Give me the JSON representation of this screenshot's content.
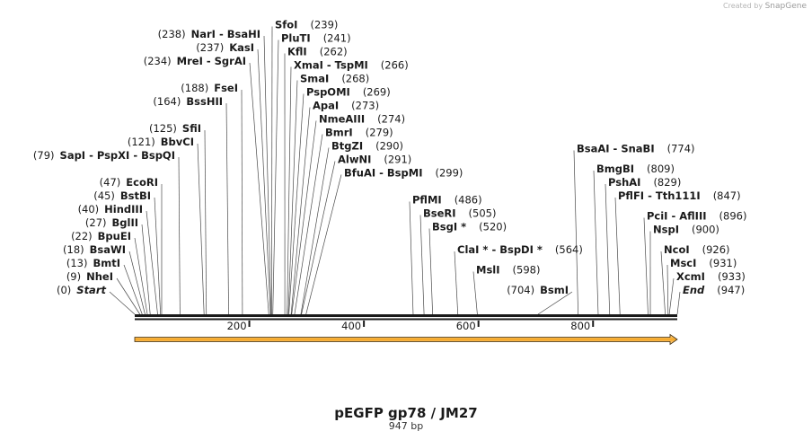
{
  "credit": {
    "prefix": "Created by",
    "brand": "SnapGene"
  },
  "plasmid": {
    "name": "pEGFP gp78 / JM27",
    "length_label": "947 bp",
    "length": 947
  },
  "ticks": [
    {
      "value": 200,
      "label": "200"
    },
    {
      "value": 400,
      "label": "400"
    },
    {
      "value": 600,
      "label": "600"
    },
    {
      "value": 800,
      "label": "800"
    }
  ],
  "feature": {
    "name": "arrow-feature",
    "start": 0,
    "end": 947,
    "color": "#f5a623"
  },
  "sites": [
    {
      "names": [
        "Start"
      ],
      "pos": 0,
      "pos_label": "(0)",
      "italic": true,
      "side": "left",
      "row": 0
    },
    {
      "names": [
        "NheI"
      ],
      "pos": 9,
      "pos_label": "(9)",
      "side": "left",
      "row": 1
    },
    {
      "names": [
        "BmtI"
      ],
      "pos": 13,
      "pos_label": "(13)",
      "side": "left",
      "row": 2
    },
    {
      "names": [
        "BsaWI"
      ],
      "pos": 18,
      "pos_label": "(18)",
      "side": "left",
      "row": 3
    },
    {
      "names": [
        "BpuEI"
      ],
      "pos": 22,
      "pos_label": "(22)",
      "side": "left",
      "row": 4
    },
    {
      "names": [
        "BglII"
      ],
      "pos": 27,
      "pos_label": "(27)",
      "side": "left",
      "row": 5
    },
    {
      "names": [
        "HindIII"
      ],
      "pos": 40,
      "pos_label": "(40)",
      "side": "left",
      "row": 6
    },
    {
      "names": [
        "BstBI"
      ],
      "pos": 45,
      "pos_label": "(45)",
      "side": "left",
      "row": 7
    },
    {
      "names": [
        "EcoRI"
      ],
      "pos": 47,
      "pos_label": "(47)",
      "side": "left",
      "row": 8
    },
    {
      "names": [
        "SapI",
        "PspXI",
        "BspQI"
      ],
      "pos": 79,
      "pos_label": "(79)",
      "side": "left",
      "row": 10
    },
    {
      "names": [
        "BbvCI"
      ],
      "pos": 121,
      "pos_label": "(121)",
      "side": "left",
      "row": 11
    },
    {
      "names": [
        "SfiI"
      ],
      "pos": 125,
      "pos_label": "(125)",
      "side": "left",
      "row": 12
    },
    {
      "names": [
        "BssHII"
      ],
      "pos": 164,
      "pos_label": "(164)",
      "side": "left",
      "row": 14
    },
    {
      "names": [
        "FseI"
      ],
      "pos": 188,
      "pos_label": "(188)",
      "side": "left",
      "row": 15
    },
    {
      "names": [
        "MreI",
        "SgrAI"
      ],
      "pos": 234,
      "pos_label": "(234)",
      "side": "left",
      "row": 17
    },
    {
      "names": [
        "KasI"
      ],
      "pos": 237,
      "pos_label": "(237)",
      "side": "left",
      "row": 18
    },
    {
      "names": [
        "NarI",
        "BsaHI"
      ],
      "pos": 238,
      "pos_label": "(238)",
      "side": "left",
      "row": 19
    },
    {
      "names": [
        "SfoI"
      ],
      "pos": 239,
      "pos_label": "(239)",
      "side": "right",
      "row": 19.7
    },
    {
      "names": [
        "PluTI"
      ],
      "pos": 241,
      "pos_label": "(241)",
      "side": "right",
      "row": 18.7
    },
    {
      "names": [
        "KflI"
      ],
      "pos": 262,
      "pos_label": "(262)",
      "side": "right",
      "row": 17.7
    },
    {
      "names": [
        "XmaI",
        "TspMI"
      ],
      "pos": 266,
      "pos_label": "(266)",
      "side": "right",
      "row": 16.7
    },
    {
      "names": [
        "SmaI"
      ],
      "pos": 268,
      "pos_label": "(268)",
      "side": "right",
      "row": 15.7
    },
    {
      "names": [
        "PspOMI"
      ],
      "pos": 269,
      "pos_label": "(269)",
      "side": "right",
      "row": 14.7
    },
    {
      "names": [
        "ApaI"
      ],
      "pos": 273,
      "pos_label": "(273)",
      "side": "right",
      "row": 13.7
    },
    {
      "names": [
        "NmeAIII"
      ],
      "pos": 274,
      "pos_label": "(274)",
      "side": "right",
      "row": 12.7
    },
    {
      "names": [
        "BmrI"
      ],
      "pos": 279,
      "pos_label": "(279)",
      "side": "right",
      "row": 11.7
    },
    {
      "names": [
        "BtgZI"
      ],
      "pos": 290,
      "pos_label": "(290)",
      "side": "right",
      "row": 10.7
    },
    {
      "names": [
        "AlwNI"
      ],
      "pos": 291,
      "pos_label": "(291)",
      "side": "right",
      "row": 9.7
    },
    {
      "names": [
        "BfuAI",
        "BspMI"
      ],
      "pos": 299,
      "pos_label": "(299)",
      "side": "right",
      "row": 8.7
    },
    {
      "names": [
        "PflMI"
      ],
      "pos": 486,
      "pos_label": "(486)",
      "side": "right",
      "row": 6.7
    },
    {
      "names": [
        "BseRI"
      ],
      "pos": 505,
      "pos_label": "(505)",
      "side": "right",
      "row": 5.7
    },
    {
      "names": [
        "BsgI *"
      ],
      "pos": 520,
      "pos_label": "(520)",
      "side": "right",
      "row": 4.7
    },
    {
      "names": [
        "ClaI *",
        "BspDI *"
      ],
      "pos": 564,
      "pos_label": "(564)",
      "side": "right",
      "row": 3
    },
    {
      "names": [
        "MslI"
      ],
      "pos": 598,
      "pos_label": "(598)",
      "side": "right",
      "row": 1.5
    },
    {
      "names": [
        "BsmI"
      ],
      "pos": 704,
      "pos_label": "(704)",
      "side": "left",
      "row": 0
    },
    {
      "names": [
        "BsaAI",
        "SnaBI"
      ],
      "pos": 774,
      "pos_label": "(774)",
      "side": "right",
      "row": 10.5
    },
    {
      "names": [
        "BmgBI"
      ],
      "pos": 809,
      "pos_label": "(809)",
      "side": "right",
      "row": 9
    },
    {
      "names": [
        "PshAI"
      ],
      "pos": 829,
      "pos_label": "(829)",
      "side": "right",
      "row": 8
    },
    {
      "names": [
        "PflFI",
        "Tth111I"
      ],
      "pos": 847,
      "pos_label": "(847)",
      "side": "right",
      "row": 7
    },
    {
      "names": [
        "PciI",
        "AflIII"
      ],
      "pos": 896,
      "pos_label": "(896)",
      "side": "right",
      "row": 5.5
    },
    {
      "names": [
        "NspI"
      ],
      "pos": 900,
      "pos_label": "(900)",
      "side": "right",
      "row": 4.5
    },
    {
      "names": [
        "NcoI"
      ],
      "pos": 926,
      "pos_label": "(926)",
      "side": "right",
      "row": 3
    },
    {
      "names": [
        "MscI"
      ],
      "pos": 931,
      "pos_label": "(931)",
      "side": "right",
      "row": 2
    },
    {
      "names": [
        "XcmI"
      ],
      "pos": 933,
      "pos_label": "(933)",
      "side": "right",
      "row": 1
    },
    {
      "names": [
        "End"
      ],
      "pos": 947,
      "pos_label": "(947)",
      "italic": true,
      "side": "right",
      "row": 0
    }
  ]
}
